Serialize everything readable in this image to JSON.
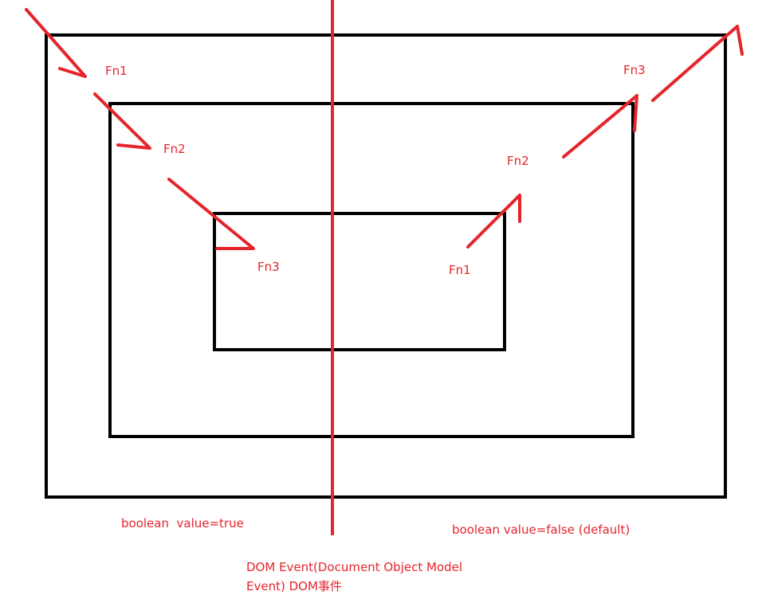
{
  "diagram": {
    "capture_side": {
      "labels": [
        "Fn1",
        "Fn2",
        "Fn3"
      ],
      "caption": "boolean  value=true"
    },
    "bubble_side": {
      "labels": [
        "Fn1",
        "Fn2",
        "Fn3"
      ],
      "caption": "boolean value=false (default)"
    },
    "footer": {
      "line1": "DOM Event(Document Object Model",
      "line2": "Event) DOM事件"
    },
    "colors": {
      "stroke": "#000000",
      "accent": "#e5242b",
      "background": "#ffffff"
    }
  }
}
